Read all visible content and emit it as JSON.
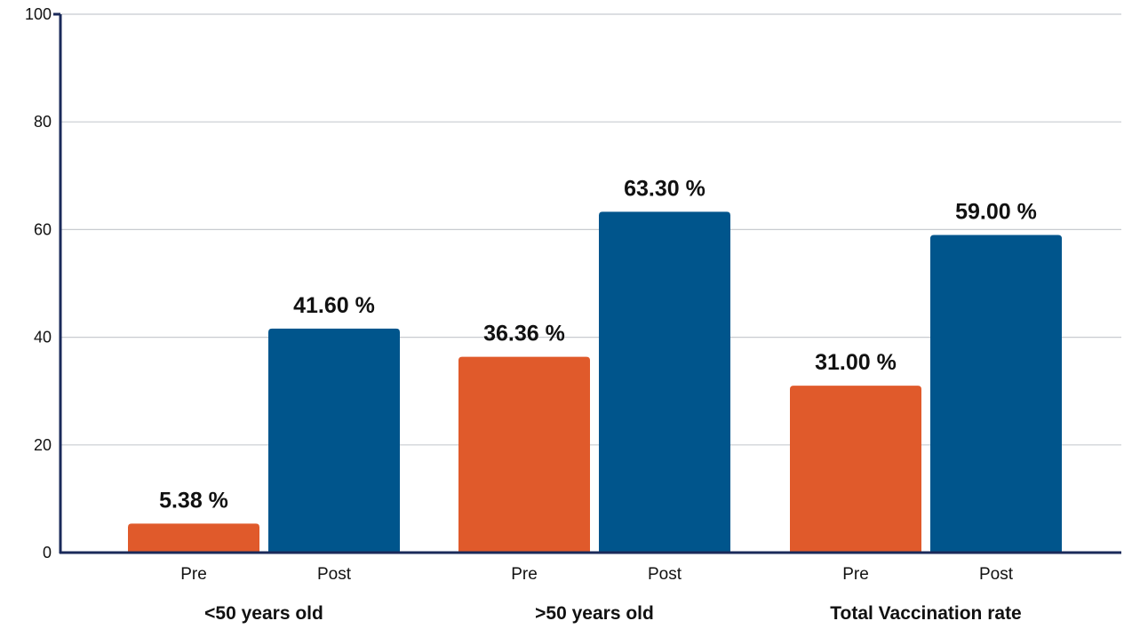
{
  "chart_data": {
    "type": "bar",
    "groups": [
      {
        "label": "<50 years old",
        "bars": [
          {
            "category": "Pre",
            "value": 5.38,
            "label": "5.38 %"
          },
          {
            "category": "Post",
            "value": 41.6,
            "label": "41.60 %"
          }
        ]
      },
      {
        "label": ">50 years old",
        "bars": [
          {
            "category": "Pre",
            "value": 36.36,
            "label": "36.36 %"
          },
          {
            "category": "Post",
            "value": 63.3,
            "label": "63.30 %"
          }
        ]
      },
      {
        "label": "Total Vaccination rate",
        "bars": [
          {
            "category": "Pre",
            "value": 31.0,
            "label": "31.00 %"
          },
          {
            "category": "Post",
            "value": 59.0,
            "label": "59.00 %"
          }
        ]
      }
    ],
    "ylim": [
      0,
      100
    ],
    "yticks": [
      0,
      20,
      40,
      60,
      80,
      100
    ],
    "grid": true,
    "colors": {
      "Pre": "#e05a2b",
      "Post": "#00558c"
    },
    "axis_color": "#1a2a5a",
    "grid_color": "#c8cbd0"
  }
}
